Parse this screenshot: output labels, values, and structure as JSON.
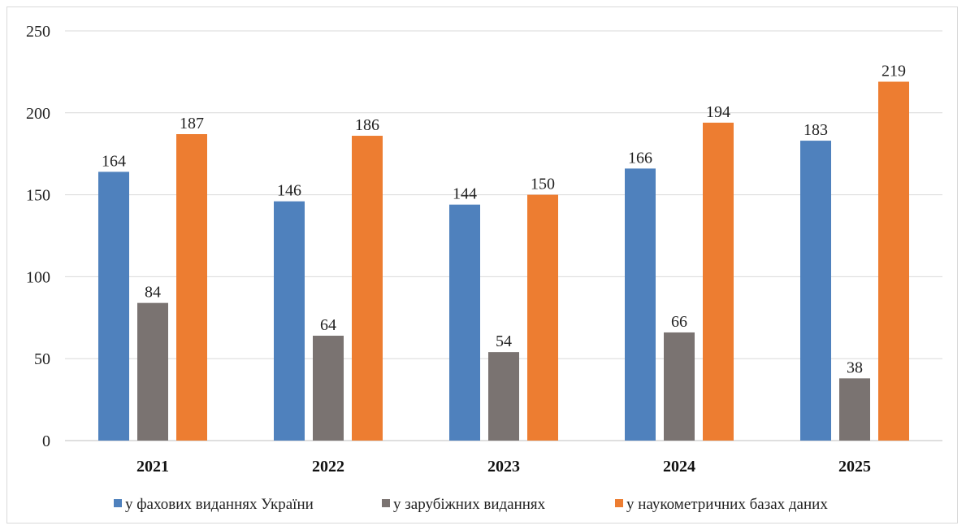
{
  "chart_data": {
    "type": "bar",
    "title": "",
    "xlabel": "",
    "ylabel": "",
    "ylim": [
      0,
      250
    ],
    "yticks": [
      0,
      50,
      100,
      150,
      200,
      250
    ],
    "grid": true,
    "legend_position": "bottom",
    "categories": [
      "2021",
      "2022",
      "2023",
      "2024",
      "2025"
    ],
    "series": [
      {
        "name": "у фахових виданнях України",
        "color": "#4f81bd",
        "values": [
          164,
          146,
          144,
          166,
          183
        ]
      },
      {
        "name": "у зарубіжних виданнях",
        "color": "#7a7371",
        "values": [
          84,
          64,
          54,
          66,
          38
        ]
      },
      {
        "name": "у наукометричних базах даних",
        "color": "#ed7d31",
        "values": [
          187,
          186,
          150,
          194,
          219
        ]
      }
    ]
  }
}
